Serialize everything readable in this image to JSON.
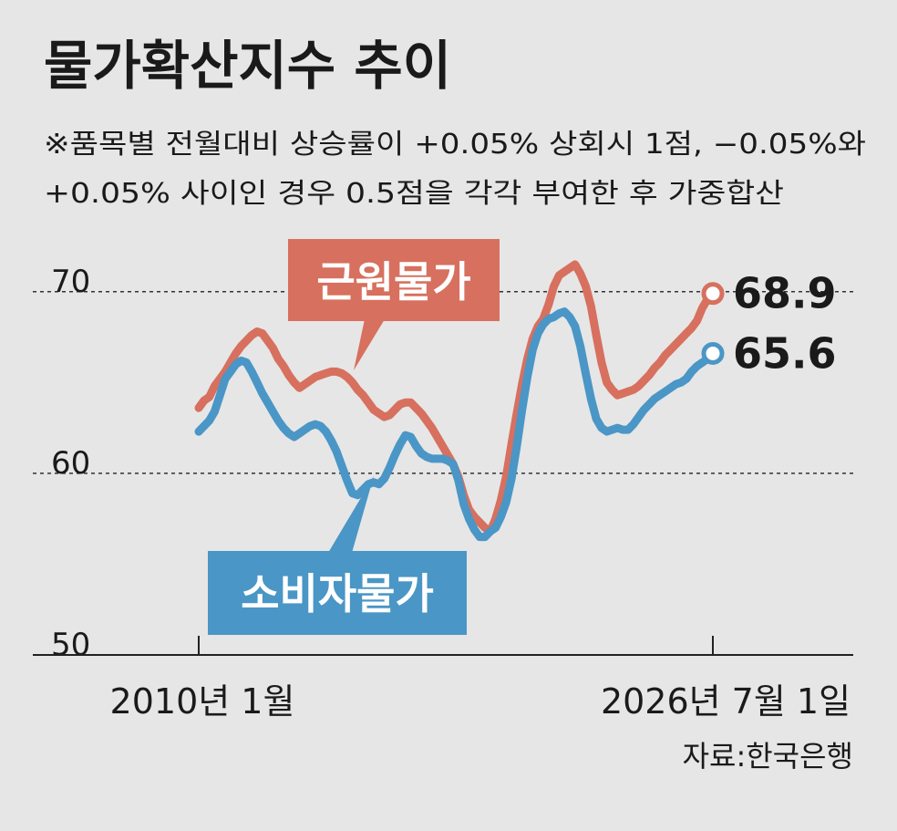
{
  "title": "물가확산지수 추이",
  "note_line1": "※품목별 전월대비 상승률이 +0.05% 상회시 1점, −0.05%와",
  "note_line2": "+0.05% 사이인 경우 0.5점을 각각 부여한 후 가중합산",
  "source": "자료:한국은행",
  "colors": {
    "core": "#d7705e",
    "cpi": "#4a96c6",
    "background": "#e6e6e6",
    "text": "#1a1a1a"
  },
  "chart_data": {
    "type": "line",
    "x_labels": [
      "2010년 1월",
      "2026년 7월 1일"
    ],
    "ylim": [
      49,
      72
    ],
    "yticks": [
      70,
      60,
      50
    ],
    "gridlines": [
      69,
      59
    ],
    "series": [
      {
        "name": "근원물가",
        "label": "근원물가",
        "end_value": "68.9",
        "values": [
          62.6,
          63.0,
          63.2,
          63.8,
          64.2,
          64.6,
          65.1,
          65.6,
          66.0,
          66.3,
          66.6,
          66.8,
          66.7,
          66.3,
          65.9,
          65.3,
          64.9,
          64.4,
          64.0,
          63.7,
          63.9,
          64.1,
          64.3,
          64.4,
          64.5,
          64.6,
          64.6,
          64.5,
          64.3,
          64.0,
          63.6,
          63.3,
          62.9,
          62.5,
          62.3,
          62.1,
          62.2,
          62.5,
          62.8,
          62.9,
          62.9,
          62.6,
          62.3,
          61.9,
          61.5,
          61.0,
          60.5,
          60.0,
          59.5,
          58.8,
          57.8,
          57.0,
          56.6,
          56.3,
          56.0,
          55.8,
          56.5,
          57.5,
          58.8,
          60.6,
          62.3,
          63.9,
          65.3,
          66.4,
          67.1,
          67.5,
          68.3,
          69.3,
          69.9,
          70.1,
          70.3,
          70.5,
          70.0,
          69.3,
          68.2,
          66.6,
          65.1,
          64.0,
          63.6,
          63.3,
          63.4,
          63.5,
          63.6,
          63.8,
          64.1,
          64.4,
          64.8,
          65.1,
          65.5,
          65.8,
          66.1,
          66.4,
          66.7,
          67.0,
          67.4,
          68.1,
          68.6,
          68.9
        ]
      },
      {
        "name": "소비자물가",
        "label": "소비자물가",
        "end_value": "65.6",
        "values": [
          61.3,
          61.6,
          61.9,
          62.4,
          63.3,
          64.2,
          64.6,
          65.0,
          65.2,
          65.1,
          64.6,
          64.0,
          63.4,
          62.9,
          62.4,
          61.9,
          61.5,
          61.2,
          61.0,
          61.2,
          61.4,
          61.6,
          61.7,
          61.6,
          61.3,
          60.8,
          60.2,
          59.4,
          58.6,
          57.9,
          57.8,
          58.1,
          58.4,
          58.5,
          58.4,
          58.7,
          59.3,
          60.0,
          60.6,
          61.1,
          61.0,
          60.5,
          60.1,
          59.9,
          59.8,
          59.8,
          59.8,
          59.7,
          59.5,
          58.6,
          57.3,
          56.5,
          55.9,
          55.5,
          55.5,
          55.8,
          56.0,
          56.6,
          57.4,
          58.7,
          60.5,
          62.5,
          64.3,
          65.8,
          66.7,
          67.2,
          67.5,
          67.6,
          67.8,
          67.9,
          67.6,
          67.1,
          66.0,
          64.5,
          63.1,
          62.0,
          61.5,
          61.3,
          61.4,
          61.5,
          61.4,
          61.4,
          61.7,
          62.1,
          62.5,
          62.8,
          63.1,
          63.3,
          63.5,
          63.7,
          63.9,
          64.0,
          64.2,
          64.6,
          64.9,
          65.1,
          65.3,
          65.6
        ]
      }
    ]
  }
}
